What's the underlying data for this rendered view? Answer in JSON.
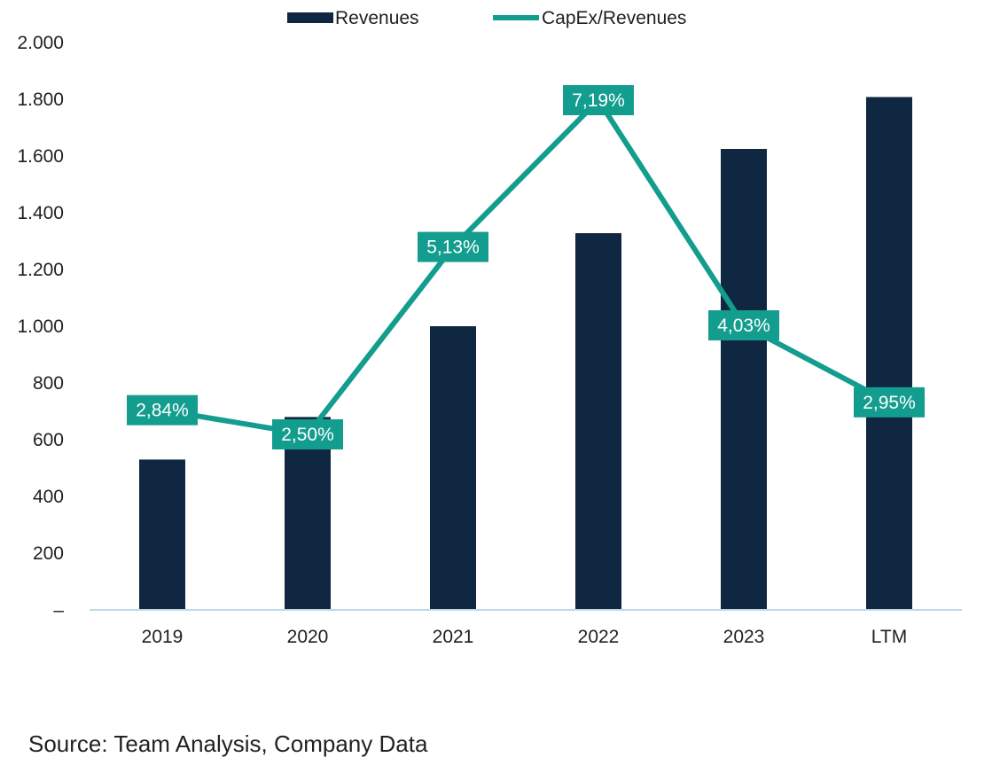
{
  "chart_data": {
    "type": "bar",
    "categories": [
      "2019",
      "2020",
      "2021",
      "2022",
      "2023",
      "LTM"
    ],
    "series": [
      {
        "name": "Revenues",
        "kind": "bar",
        "axis": "left",
        "values": [
          530,
          680,
          1000,
          1328,
          1625,
          1808
        ]
      },
      {
        "name": "CapEx/Revenues",
        "kind": "line",
        "axis": "secondary",
        "values": [
          2.84,
          2.5,
          5.13,
          7.19,
          4.03,
          2.95
        ],
        "labels": [
          "2,84%",
          "2,50%",
          "5,13%",
          "7,19%",
          "4,03%",
          "2,95%"
        ]
      }
    ],
    "ylim": [
      0,
      2000
    ],
    "yticks": [
      0,
      200,
      400,
      600,
      800,
      1000,
      1200,
      1400,
      1600,
      1800,
      2000
    ],
    "ytick_labels": [
      "–",
      "200",
      "400",
      "600",
      "800",
      "1.000",
      "1.200",
      "1.400",
      "1.600",
      "1.800",
      "2.000"
    ],
    "legend": {
      "position": "top",
      "entries": [
        "Revenues",
        "CapEx/Revenues"
      ]
    },
    "colors": {
      "bar": "#0f2740",
      "line": "#139d8e",
      "axis": "#bcd9ea"
    },
    "grid": false
  },
  "source": "Source: Team Analysis, Company Data"
}
